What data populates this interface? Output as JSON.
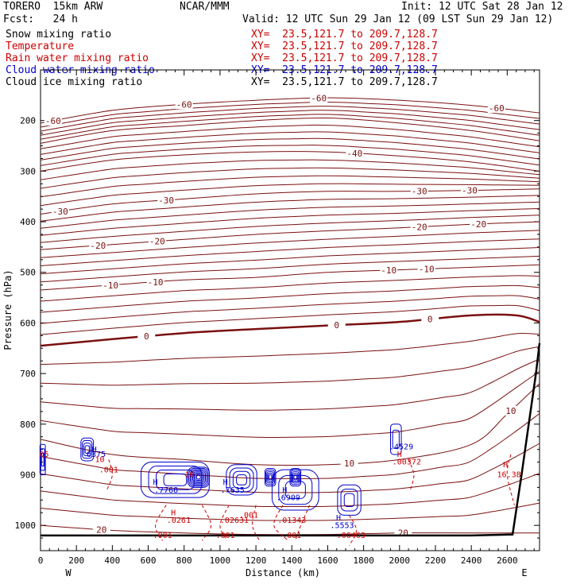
{
  "header": {
    "model": "TORERO  15km ARW",
    "org": "NCAR/MMM",
    "init": "Init: 12 UTC Sat 28 Jan 12",
    "fcst": "Fcst:   24 h",
    "valid": "Valid: 12 UTC Sun 29 Jan 12 (09 LST Sun 29 Jan 12)"
  },
  "legend": [
    {
      "name": "Snow mixing ratio",
      "xy": "XY=  23.5,121.7 to 209.7,128.7",
      "color": "#000000"
    },
    {
      "name": "Temperature",
      "xy": "XY=  23.5,121.7 to 209.7,128.7",
      "color": "#cc0000"
    },
    {
      "name": "Rain water mixing ratio",
      "xy": "XY=  23.5,121.7 to 209.7,128.7",
      "color": "#cc0000"
    },
    {
      "name": "Cloud water mixing ratio",
      "xy": "XY=  23.5,121.7 to 209.7,128.7",
      "color": "#0000cc"
    },
    {
      "name": "Cloud ice mixing ratio",
      "xy": "XY=  23.5,121.7 to 209.7,128.7",
      "color": "#000000"
    }
  ],
  "chart_data": {
    "type": "line",
    "xlabel": "Distance (km)",
    "ylabel": "Pressure (hPa)",
    "xlim": [
      0,
      2780
    ],
    "ylim": [
      1050,
      100
    ],
    "x_ticks": [
      0,
      200,
      400,
      600,
      800,
      1000,
      1200,
      1400,
      1600,
      1800,
      2000,
      2200,
      2400,
      2600
    ],
    "y_ticks": [
      200,
      300,
      400,
      500,
      600,
      700,
      800,
      900,
      1000
    ],
    "x_end_labels": {
      "left": "W",
      "right": "E"
    },
    "temperature_contours": [
      {
        "level": "-60",
        "x": [
          0,
          400,
          800,
          1200,
          1600,
          2000,
          2400,
          2780
        ],
        "p": [
          205,
          180,
          168,
          160,
          155,
          160,
          170,
          185
        ],
        "labels": [
          {
            "x": 70,
            "text": "-60"
          },
          {
            "x": 800,
            "text": "-60"
          },
          {
            "x": 1550,
            "text": "-60"
          },
          {
            "x": 2540,
            "text": "-60"
          }
        ]
      },
      {
        "level": "-50",
        "x": [
          0,
          400,
          800,
          1200,
          1600,
          2000,
          2400,
          2780
        ],
        "p": [
          245,
          220,
          210,
          200,
          195,
          205,
          220,
          240
        ],
        "labels": []
      },
      {
        "level": "-40",
        "x": [
          0,
          400,
          800,
          1200,
          1600,
          2000,
          2400,
          2780
        ],
        "p": [
          300,
          278,
          268,
          262,
          262,
          270,
          282,
          300
        ],
        "labels": [
          {
            "x": 1750,
            "text": "-40"
          }
        ]
      },
      {
        "level": "-30",
        "x": [
          0,
          400,
          800,
          1200,
          1600,
          2000,
          2400,
          2780
        ],
        "p": [
          385,
          365,
          355,
          345,
          340,
          340,
          338,
          335
        ],
        "labels": [
          {
            "x": 110,
            "text": "-30"
          },
          {
            "x": 700,
            "text": "-30"
          },
          {
            "x": 2110,
            "text": "-30"
          },
          {
            "x": 2390,
            "text": "-30"
          }
        ]
      },
      {
        "level": "-20",
        "x": [
          0,
          400,
          800,
          1200,
          1600,
          2000,
          2400,
          2780
        ],
        "p": [
          455,
          445,
          435,
          425,
          418,
          412,
          405,
          400
        ],
        "labels": [
          {
            "x": 320,
            "text": "-20"
          },
          {
            "x": 650,
            "text": "-20"
          },
          {
            "x": 2110,
            "text": "-20"
          },
          {
            "x": 2440,
            "text": "-20"
          }
        ]
      },
      {
        "level": "-10",
        "x": [
          0,
          400,
          800,
          1200,
          1600,
          2000,
          2400,
          2780
        ],
        "p": [
          535,
          525,
          515,
          510,
          500,
          495,
          490,
          485
        ],
        "labels": [
          {
            "x": 390,
            "text": "-10"
          },
          {
            "x": 640,
            "text": "-10"
          },
          {
            "x": 1940,
            "text": "-10"
          },
          {
            "x": 2150,
            "text": "-10"
          }
        ]
      },
      {
        "level": "0",
        "x": [
          0,
          400,
          800,
          1200,
          1600,
          2000,
          2400,
          2650,
          2780
        ],
        "p": [
          645,
          632,
          620,
          612,
          605,
          598,
          585,
          585,
          598
        ],
        "labels": [
          {
            "x": 590,
            "text": "0"
          },
          {
            "x": 1650,
            "text": "0"
          },
          {
            "x": 2170,
            "text": "0"
          }
        ]
      },
      {
        "level": "10",
        "x": [
          0,
          400,
          800,
          1200,
          1600,
          2000,
          2400,
          2600,
          2780
        ],
        "p": [
          830,
          860,
          870,
          880,
          880,
          870,
          840,
          780,
          720
        ],
        "labels": [
          {
            "x": 1720,
            "text": "10"
          },
          {
            "x": 2620,
            "text": "10"
          }
        ]
      },
      {
        "level": "20",
        "x": [
          0,
          400,
          800,
          1200,
          1600,
          2000,
          2400,
          2780
        ],
        "p": [
          1000,
          1010,
          1015,
          1018,
          1018,
          1015,
          1015,
          1015
        ],
        "labels": [
          {
            "x": 340,
            "text": "20"
          },
          {
            "x": 2020,
            "text": "20"
          }
        ]
      }
    ],
    "surface": {
      "x": [
        0,
        600,
        1200,
        1800,
        2400,
        2630,
        2680,
        2720,
        2760,
        2780
      ],
      "p": [
        1020,
        1020,
        1020,
        1020,
        1020,
        1018,
        900,
        800,
        700,
        640
      ]
    },
    "extrema_labels": [
      {
        "x": 20,
        "p": 865,
        "text": "05",
        "color": "#cc0000"
      },
      {
        "x": 300,
        "p": 855,
        "text": "H",
        "color": "#0000cc"
      },
      {
        "x": 310,
        "p": 865,
        "text": "6375",
        "color": "#0000cc"
      },
      {
        "x": 640,
        "p": 920,
        "text": "H",
        "color": "#0000cc"
      },
      {
        "x": 700,
        "p": 935,
        "text": ".7768",
        "color": "#0000cc"
      },
      {
        "x": 1030,
        "p": 920,
        "text": "H",
        "color": "#0000cc"
      },
      {
        "x": 1070,
        "p": 935,
        "text": ".7635",
        "color": "#0000cc"
      },
      {
        "x": 1360,
        "p": 935,
        "text": "H",
        "color": "#0000cc"
      },
      {
        "x": 1380,
        "p": 950,
        "text": ".6909",
        "color": "#0000cc"
      },
      {
        "x": 2010,
        "p": 850,
        "text": ".4529",
        "color": "#0000cc"
      },
      {
        "x": 1660,
        "p": 990,
        "text": "H",
        "color": "#0000cc"
      },
      {
        "x": 1680,
        "p": 1005,
        "text": ".5553",
        "color": "#0000cc"
      },
      {
        "x": 740,
        "p": 980,
        "text": "H",
        "color": "#cc0000"
      },
      {
        "x": 770,
        "p": 995,
        "text": ".0261",
        "color": "#cc0000"
      },
      {
        "x": 1080,
        "p": 995,
        "text": ".02631",
        "color": "#cc0000"
      },
      {
        "x": 1400,
        "p": 995,
        "text": ".01343",
        "color": "#cc0000"
      },
      {
        "x": 1730,
        "p": 1025,
        "text": ".06463",
        "color": "#cc0000"
      },
      {
        "x": 2000,
        "p": 865,
        "text": "H",
        "color": "#cc0000"
      },
      {
        "x": 2040,
        "p": 880,
        "text": ".00372",
        "color": "#cc0000"
      },
      {
        "x": 2590,
        "p": 885,
        "text": "H",
        "color": "#cc0000"
      },
      {
        "x": 2610,
        "p": 905,
        "text": "16.38",
        "color": "#cc0000"
      },
      {
        "x": 380,
        "p": 895,
        "text": ".001",
        "color": "#cc0000"
      },
      {
        "x": 1160,
        "p": 985,
        "text": ".001",
        "color": "#cc0000"
      },
      {
        "x": 680,
        "p": 1025,
        "text": ".001",
        "color": "#cc0000"
      },
      {
        "x": 1030,
        "p": 1025,
        "text": ".001",
        "color": "#cc0000"
      },
      {
        "x": 1400,
        "p": 1025,
        "text": ".001",
        "color": "#cc0000"
      },
      {
        "x": 330,
        "p": 875,
        "text": "10",
        "color": "#cc0000"
      },
      {
        "x": 830,
        "p": 905,
        "text": "10",
        "color": "#cc0000"
      }
    ]
  }
}
